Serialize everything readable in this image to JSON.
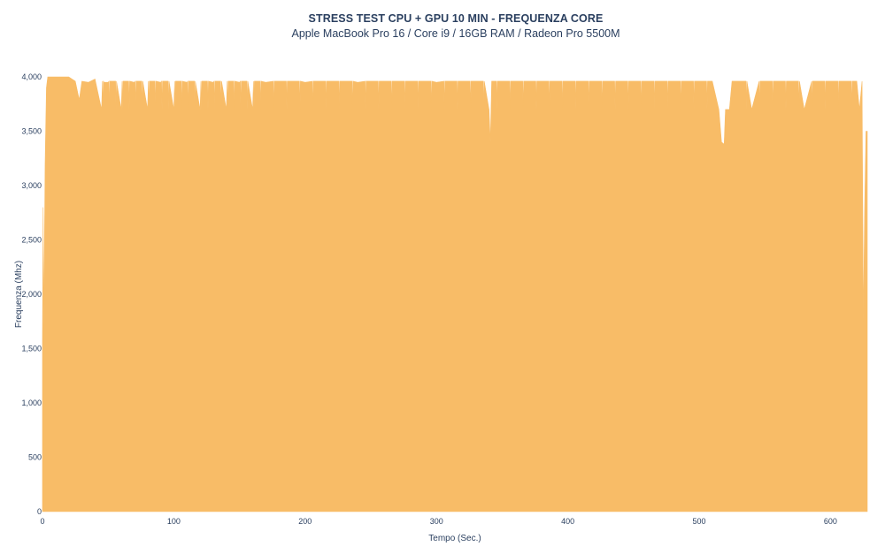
{
  "chart_data": {
    "type": "area",
    "title": "STRESS TEST CPU + GPU 10 MIN - FREQUENZA CORE",
    "subtitle": "Apple MacBook Pro 16 / Core i9 / 16GB RAM / Radeon Pro 5500M",
    "xlabel": "Tempo (Sec.)",
    "ylabel": "Frequenza (Mhz)",
    "xlim": [
      0,
      628
    ],
    "ylim": [
      0,
      4000
    ],
    "x_ticks": [
      "0",
      "100",
      "200",
      "300",
      "400",
      "500",
      "600"
    ],
    "y_ticks": [
      "0",
      "500",
      "1,000",
      "1,500",
      "2,000",
      "2,500",
      "3,000",
      "3,500",
      "4,000"
    ],
    "fill_color": "#f8bc67",
    "grid": false,
    "series": [
      {
        "x": [
          0,
          0.5,
          1,
          2,
          3,
          4,
          5,
          6,
          8,
          10,
          15,
          20,
          25,
          28,
          30,
          35,
          40,
          45,
          47,
          50,
          60,
          70,
          80,
          90,
          100,
          110,
          120,
          130,
          140,
          150,
          160,
          170,
          180,
          200,
          220,
          240,
          260,
          280,
          300,
          320,
          340,
          341,
          342,
          350,
          360,
          380,
          400,
          420,
          440,
          460,
          480,
          500,
          510,
          515,
          517,
          519,
          520,
          521,
          523,
          525,
          530,
          540,
          560,
          580,
          600,
          610,
          620,
          622,
          624,
          625,
          626,
          627,
          628
        ],
        "y": [
          1600,
          2800,
          1700,
          3200,
          3900,
          4000,
          4000,
          4000,
          4000,
          4000,
          4000,
          4000,
          3960,
          3790,
          3960,
          3950,
          3980,
          3700,
          3950,
          3950,
          3700,
          3950,
          3700,
          3950,
          3700,
          3950,
          3700,
          3950,
          3700,
          3950,
          3700,
          3950,
          3960,
          3950,
          3960,
          3950,
          3960,
          3960,
          3950,
          3960,
          3700,
          3400,
          3960,
          3960,
          3960,
          3960,
          3960,
          3960,
          3960,
          3960,
          3960,
          3960,
          3960,
          3700,
          3400,
          3380,
          3700,
          3700,
          3700,
          3960,
          3960,
          3700,
          3960,
          3700,
          3960,
          3960,
          3960,
          3700,
          3960,
          1750,
          2800,
          3500,
          3500
        ]
      }
    ],
    "dips_to_3700": [
      46,
      51,
      56,
      61,
      66,
      71,
      76,
      81,
      86,
      91,
      96,
      101,
      106,
      111,
      116,
      121,
      126,
      131,
      136,
      141,
      146,
      151,
      156,
      161,
      166,
      176,
      186,
      196,
      206,
      216,
      226,
      236,
      246,
      256,
      266,
      276,
      286,
      296,
      306,
      316,
      326,
      336,
      346,
      356,
      366,
      376,
      386,
      396,
      406,
      416,
      426,
      436,
      446,
      456,
      466,
      476,
      486,
      496,
      506,
      536,
      546,
      556,
      566,
      576,
      586,
      596,
      606,
      616
    ]
  }
}
